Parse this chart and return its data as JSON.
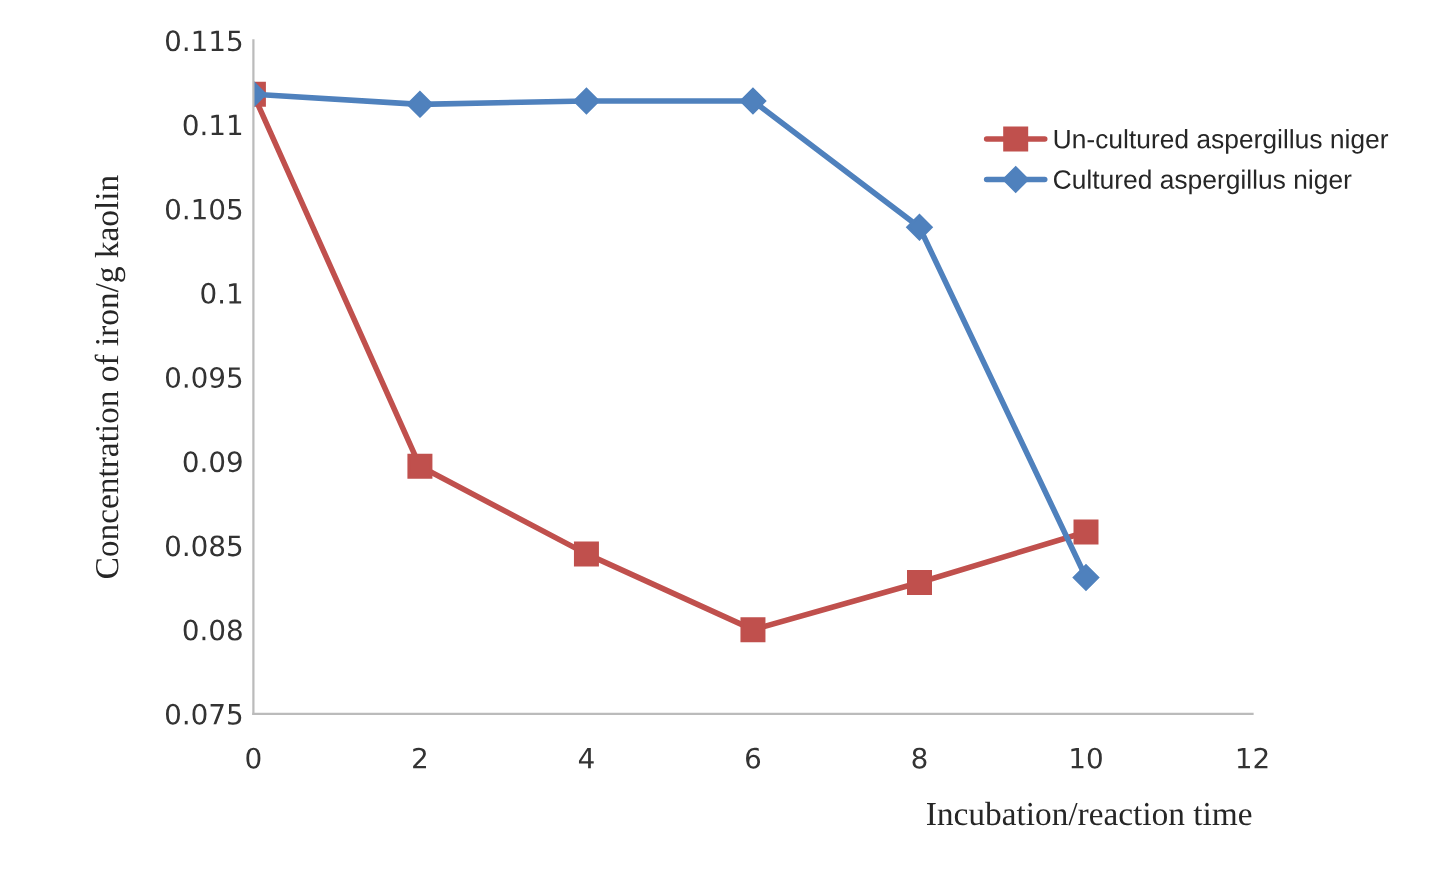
{
  "chart_data": {
    "type": "line",
    "xlabel": "Incubation/reaction time",
    "ylabel": "Concentration of iron/g kaolin",
    "x": [
      0,
      2,
      4,
      6,
      8,
      10
    ],
    "series": [
      {
        "name": "Un-cultured aspergillus niger",
        "color": "#c0504d",
        "marker": "square",
        "values": [
          0.1118,
          0.0897,
          0.0845,
          0.08,
          0.0828,
          0.0858
        ]
      },
      {
        "name": "Cultured aspergillus niger",
        "color": "#4f81bd",
        "marker": "diamond",
        "values": [
          0.1118,
          0.1112,
          0.1114,
          0.1114,
          0.1039,
          0.0831
        ]
      }
    ],
    "xlim": [
      0,
      12
    ],
    "xticks": [
      0,
      2,
      4,
      6,
      8,
      10,
      12
    ],
    "ylim": [
      0.075,
      0.115
    ],
    "yticks": [
      0.075,
      0.08,
      0.085,
      0.09,
      0.095,
      0.1,
      0.105,
      0.11,
      0.115
    ],
    "grid": false,
    "legend": "top right",
    "line_style": "solid"
  }
}
